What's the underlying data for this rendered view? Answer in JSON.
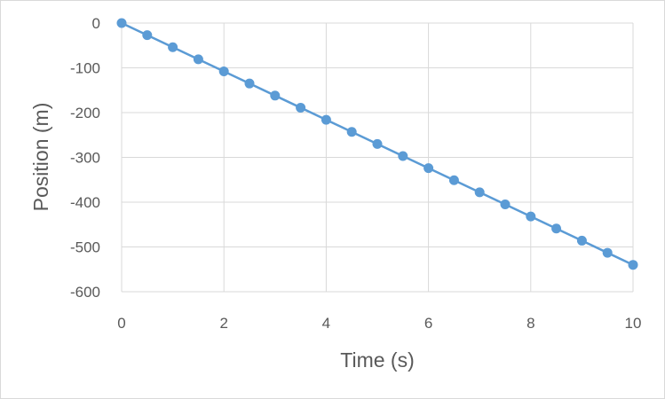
{
  "chart_data": {
    "type": "line",
    "title": "",
    "xlabel": "Time (s)",
    "ylabel": "Position (m)",
    "xlim": [
      0,
      10
    ],
    "ylim": [
      -600,
      0
    ],
    "xticks": [
      0,
      2,
      4,
      6,
      8,
      10
    ],
    "yticks": [
      0,
      -100,
      -200,
      -300,
      -400,
      -500,
      -600
    ],
    "grid": true,
    "legend": "none",
    "colors": {
      "series": "#5b9bd5",
      "grid": "#d9d9d9",
      "text": "#595959"
    },
    "series": [
      {
        "x": [
          0,
          0.5,
          1,
          1.5,
          2,
          2.5,
          3,
          3.5,
          4,
          4.5,
          5,
          5.5,
          6,
          6.5,
          7,
          7.5,
          8,
          8.5,
          9,
          9.5,
          10
        ],
        "y": [
          0,
          -27,
          -54,
          -81,
          -108,
          -135,
          -162,
          -189,
          -216,
          -243,
          -270,
          -297,
          -324,
          -351,
          -378,
          -405,
          -432,
          -459,
          -486,
          -513,
          -540
        ]
      }
    ]
  }
}
